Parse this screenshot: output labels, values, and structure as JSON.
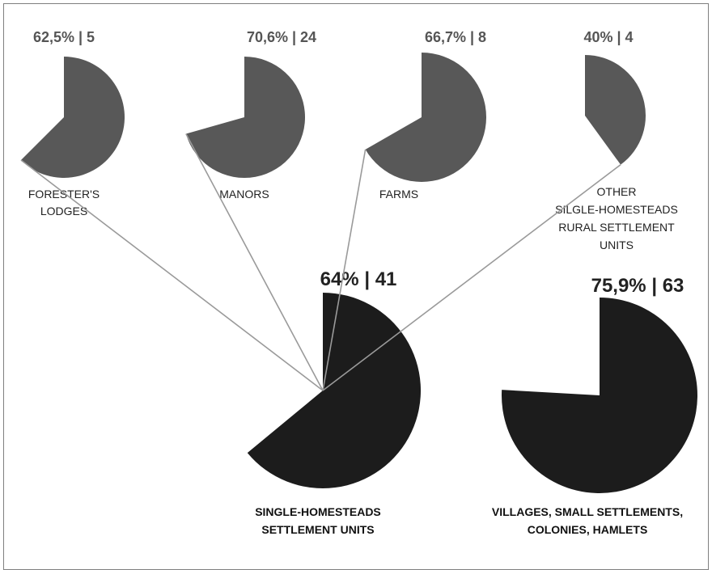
{
  "chart_data": {
    "type": "pie",
    "colors": {
      "sub": "#585858",
      "main": "#1c1c1c",
      "connector": "#9a9a9a",
      "border": "#7f7f7f"
    },
    "pies": [
      {
        "id": "foresters",
        "label_lines": [
          "FORESTER'S",
          "LODGES"
        ],
        "value_label": "62,5% | 5",
        "percent": 62.5,
        "count": 5,
        "group": "sub"
      },
      {
        "id": "manors",
        "label_lines": [
          "MANORS"
        ],
        "value_label": "70,6% | 24",
        "percent": 70.6,
        "count": 24,
        "group": "sub"
      },
      {
        "id": "farms",
        "label_lines": [
          "FARMS"
        ],
        "value_label": "66,7% | 8",
        "percent": 66.7,
        "count": 8,
        "group": "sub"
      },
      {
        "id": "other",
        "label_lines": [
          "OTHER",
          "SILGLE-HOMESTEADS",
          "RURAL SETTLEMENT",
          "UNITS"
        ],
        "value_label": "40% | 4",
        "percent": 40,
        "count": 4,
        "group": "sub"
      },
      {
        "id": "single",
        "label_lines": [
          "SINGLE-HOMESTEADS",
          "SETTLEMENT UNITS"
        ],
        "value_label": "64% | 41",
        "percent": 64,
        "count": 41,
        "group": "main"
      },
      {
        "id": "villages",
        "label_lines": [
          "VILLAGES, SMALL SETTLEMENTS,",
          "COLONIES, HAMLETS"
        ],
        "value_label": "75,9% | 63",
        "percent": 75.9,
        "count": 63,
        "group": "main"
      }
    ]
  }
}
